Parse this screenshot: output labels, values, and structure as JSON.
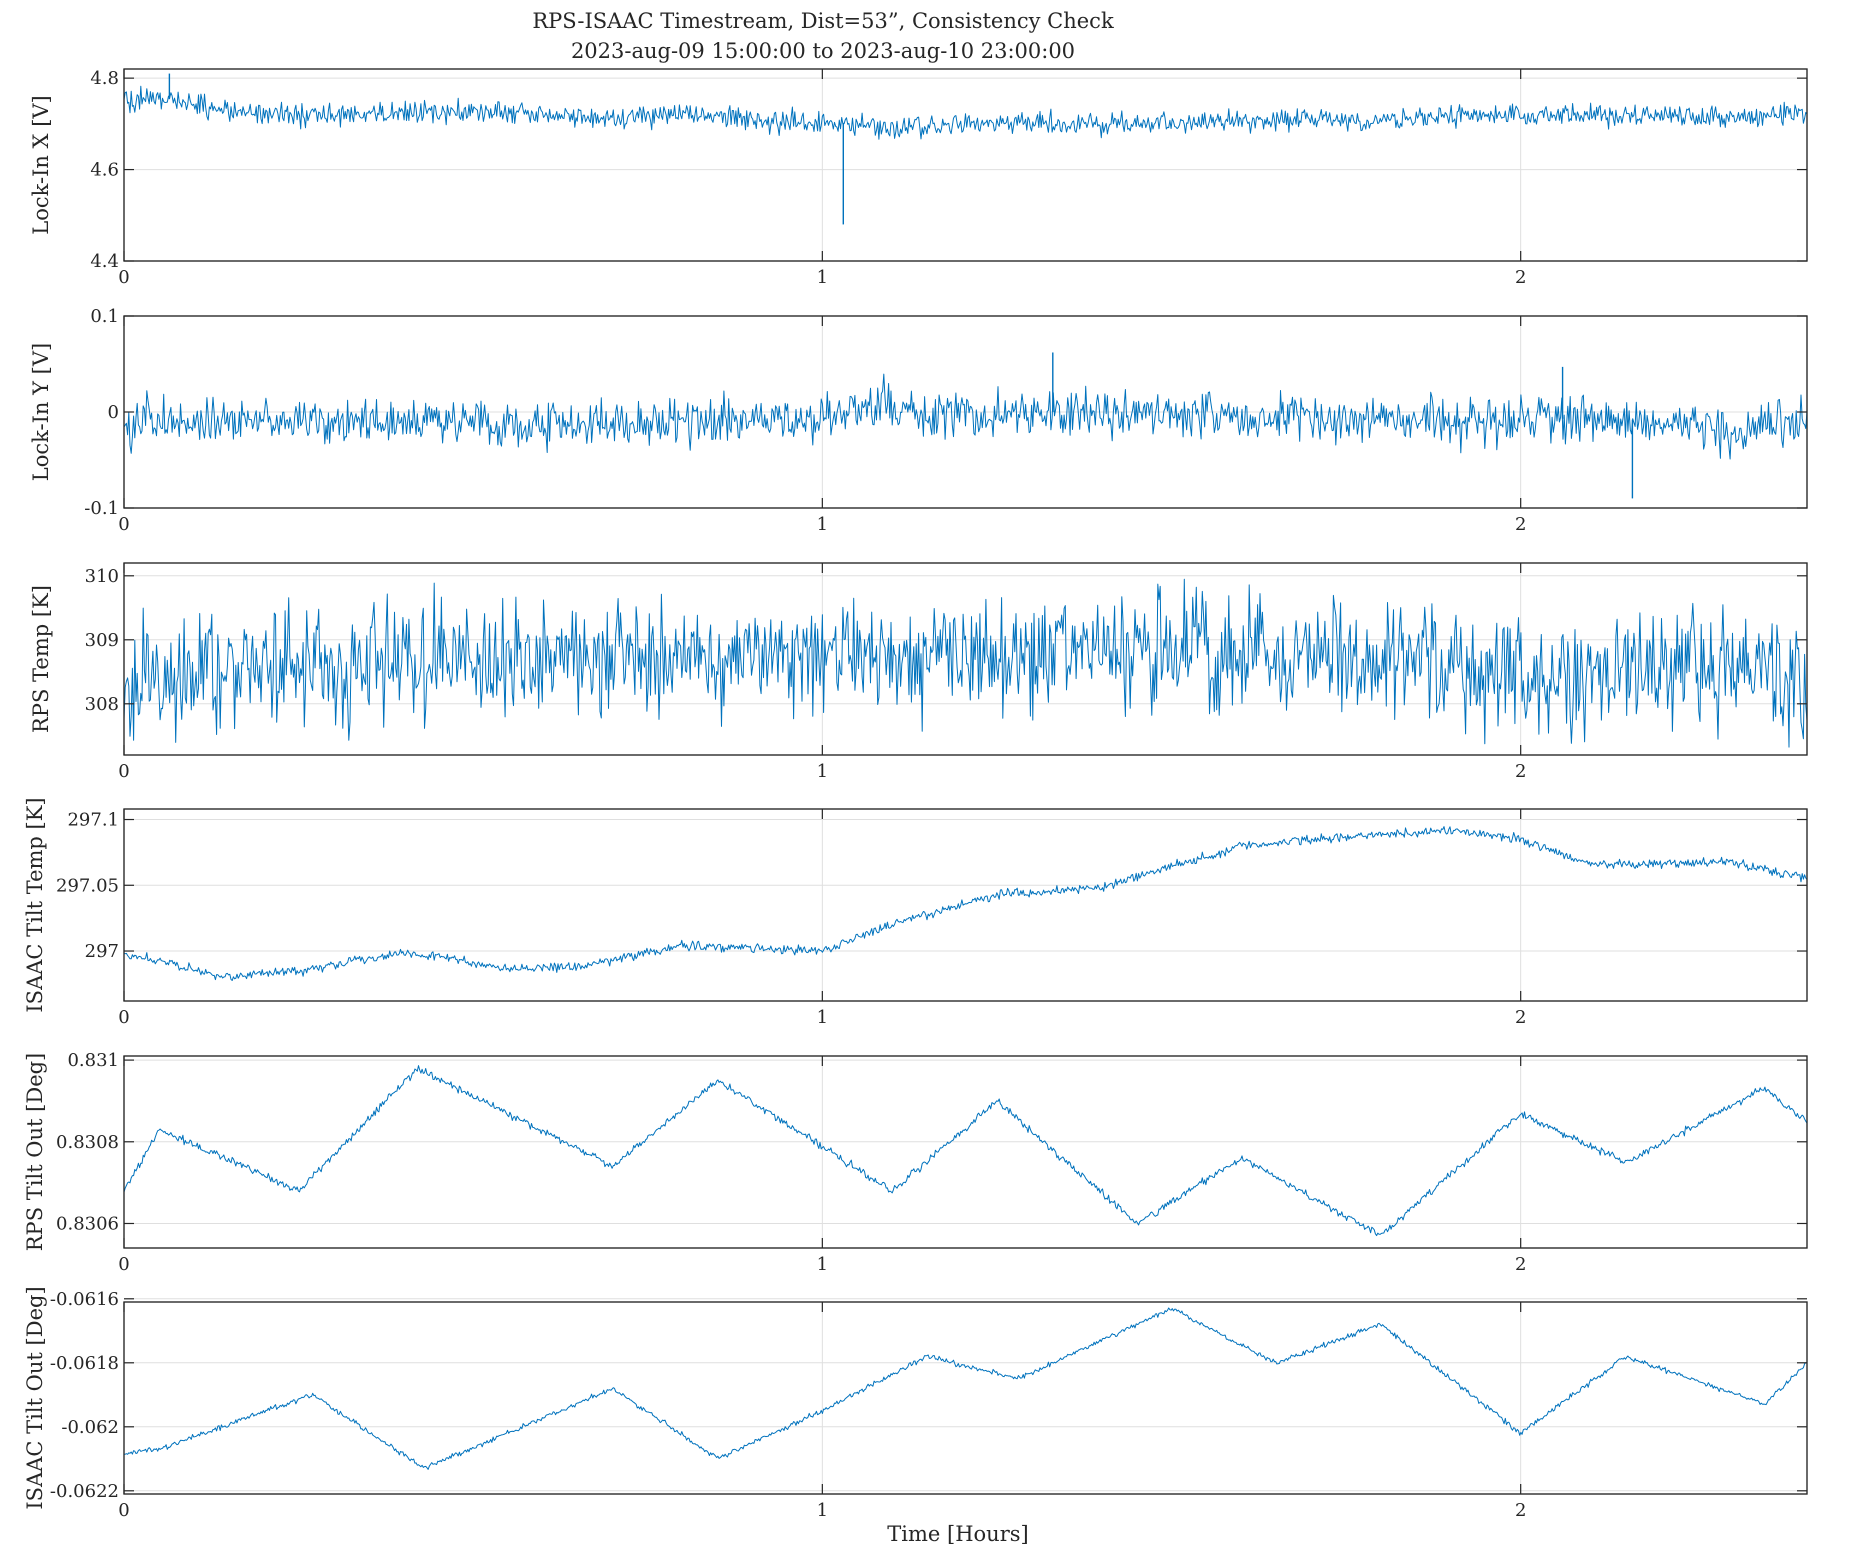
{
  "figure": {
    "title_line1": "RPS-ISAAC Timestream, Dist=53”, Consistency Check",
    "title_line2": "2023-aug-09 15:00:00 to 2023-aug-10 23:00:00",
    "xlabel": "Time [Hours]",
    "line_color": "#0072BD"
  },
  "chart_data": [
    {
      "type": "line",
      "ylabel": "Lock-In X [V]",
      "xlim": [
        0,
        2.41
      ],
      "ylim": [
        4.4,
        4.82
      ],
      "xticks": [
        0,
        1,
        2
      ],
      "xticklabels": [
        "0",
        "1",
        "2"
      ],
      "yticks": [
        4.4,
        4.6,
        4.8
      ],
      "yticklabels": [
        "4.4",
        "4.6",
        "4.8"
      ],
      "grid": true,
      "noise": 0.012,
      "series": [
        {
          "x": [
            0,
            0.05,
            0.1,
            0.15,
            0.2,
            0.3,
            0.4,
            0.5,
            0.6,
            0.7,
            0.8,
            0.9,
            1.0,
            1.05,
            1.1,
            1.2,
            1.3,
            1.4,
            1.5,
            1.6,
            1.7,
            1.8,
            1.9,
            2.0,
            2.1,
            2.2,
            2.3,
            2.41
          ],
          "y": [
            4.75,
            4.76,
            4.74,
            4.73,
            4.72,
            4.72,
            4.725,
            4.73,
            4.72,
            4.71,
            4.72,
            4.71,
            4.705,
            4.7,
            4.69,
            4.7,
            4.705,
            4.7,
            4.7,
            4.705,
            4.71,
            4.71,
            4.715,
            4.72,
            4.72,
            4.715,
            4.715,
            4.725
          ],
          "spikes": [
            {
              "x": 1.03,
              "y": 4.48
            },
            {
              "x": 0.065,
              "y": 4.81
            }
          ]
        }
      ]
    },
    {
      "type": "line",
      "ylabel": "Lock-In Y [V]",
      "xlim": [
        0,
        2.41
      ],
      "ylim": [
        -0.1,
        0.1
      ],
      "xticks": [
        0,
        1,
        2
      ],
      "xticklabels": [
        "0",
        "1",
        "2"
      ],
      "yticks": [
        -0.1,
        0,
        0.1
      ],
      "yticklabels": [
        "-0.1",
        "0",
        "0.1"
      ],
      "grid": true,
      "noise": 0.012,
      "series": [
        {
          "x": [
            0,
            0.2,
            0.4,
            0.6,
            0.8,
            1.0,
            1.1,
            1.2,
            1.3,
            1.4,
            1.6,
            1.8,
            2.0,
            2.1,
            2.2,
            2.3,
            2.41
          ],
          "y": [
            -0.01,
            -0.01,
            -0.01,
            -0.01,
            -0.01,
            -0.005,
            0.01,
            -0.005,
            0.0,
            0.0,
            -0.005,
            -0.008,
            -0.01,
            -0.005,
            -0.01,
            -0.02,
            -0.01
          ],
          "spikes": [
            {
              "x": 1.33,
              "y": 0.062
            },
            {
              "x": 2.16,
              "y": -0.09
            },
            {
              "x": 2.06,
              "y": 0.047
            }
          ]
        }
      ]
    },
    {
      "type": "line",
      "ylabel": "RPS Temp [K]",
      "xlim": [
        0,
        2.41
      ],
      "ylim": [
        307.2,
        310.2
      ],
      "xticks": [
        0,
        1,
        2
      ],
      "xticklabels": [
        "0",
        "1",
        "2"
      ],
      "yticks": [
        308,
        309,
        310
      ],
      "yticklabels": [
        "308",
        "309",
        "310"
      ],
      "grid": true,
      "noise": 0.45,
      "series": [
        {
          "x": [
            0,
            0.2,
            0.4,
            0.6,
            0.8,
            1.0,
            1.2,
            1.4,
            1.6,
            1.8,
            2.0,
            2.2,
            2.41
          ],
          "y": [
            308.3,
            308.6,
            308.6,
            308.7,
            308.7,
            308.8,
            308.8,
            308.9,
            308.8,
            308.7,
            308.5,
            308.5,
            308.5
          ]
        }
      ]
    },
    {
      "type": "line",
      "ylabel": "ISAAC Tilt Temp [K]",
      "xlim": [
        0,
        2.41
      ],
      "ylim": [
        296.962,
        297.108
      ],
      "xticks": [
        0,
        1,
        2
      ],
      "xticklabels": [
        "0",
        "1",
        "2"
      ],
      "yticks": [
        297,
        297.05,
        297.1
      ],
      "yticklabels": [
        "297",
        "297.05",
        "297.1"
      ],
      "grid": true,
      "noise": 0.0018,
      "series": [
        {
          "x": [
            0,
            0.15,
            0.25,
            0.4,
            0.55,
            0.65,
            0.8,
            0.9,
            1.0,
            1.1,
            1.25,
            1.4,
            1.6,
            1.75,
            1.9,
            2.0,
            2.1,
            2.2,
            2.3,
            2.41
          ],
          "y": [
            296.998,
            296.98,
            296.985,
            296.999,
            296.987,
            296.988,
            297.004,
            297.002,
            297.0,
            297.02,
            297.043,
            297.048,
            297.08,
            297.087,
            297.092,
            297.085,
            297.066,
            297.066,
            297.068,
            297.055
          ]
        }
      ]
    },
    {
      "type": "line",
      "ylabel": "RPS Tilt Out [Deg]",
      "xlim": [
        0,
        2.41
      ],
      "ylim": [
        0.83054,
        0.83101
      ],
      "xticks": [
        0,
        1,
        2
      ],
      "xticklabels": [
        "0",
        "1",
        "2"
      ],
      "yticks": [
        0.8306,
        0.8308,
        0.831
      ],
      "yticklabels": [
        "0.8306",
        "0.8308",
        "0.831"
      ],
      "grid": true,
      "noise": 4.5e-06,
      "series": [
        {
          "x": [
            0,
            0.05,
            0.25,
            0.42,
            0.7,
            0.85,
            1.1,
            1.25,
            1.45,
            1.6,
            1.8,
            2.0,
            2.15,
            2.35,
            2.41
          ],
          "y": [
            0.83068,
            0.83083,
            0.83068,
            0.83098,
            0.83074,
            0.83095,
            0.83068,
            0.8309,
            0.8306,
            0.83076,
            0.83057,
            0.83087,
            0.83075,
            0.83093,
            0.83085
          ]
        }
      ]
    },
    {
      "type": "line",
      "ylabel": "ISAAC Tilt Out [Deg]",
      "xlim": [
        0,
        2.41
      ],
      "ylim": [
        -0.06221,
        -0.06161
      ],
      "xticks": [
        0,
        1,
        2
      ],
      "xticklabels": [
        "0",
        "1",
        "2"
      ],
      "yticks": [
        -0.0622,
        -0.062,
        -0.0618,
        -0.0616
      ],
      "yticklabels": [
        "-0.0622",
        "-0.062",
        "-0.0618",
        "-0.0616"
      ],
      "grid": true,
      "noise": 4e-06,
      "series": [
        {
          "x": [
            0,
            0.05,
            0.27,
            0.43,
            0.7,
            0.85,
            1.0,
            1.15,
            1.28,
            1.5,
            1.65,
            1.8,
            2.0,
            2.15,
            2.35,
            2.41
          ],
          "y": [
            -0.06208,
            -0.06207,
            -0.0619,
            -0.06213,
            -0.06188,
            -0.0621,
            -0.06195,
            -0.06178,
            -0.06185,
            -0.06163,
            -0.0618,
            -0.06168,
            -0.06202,
            -0.06178,
            -0.06193,
            -0.0618
          ]
        }
      ]
    }
  ]
}
